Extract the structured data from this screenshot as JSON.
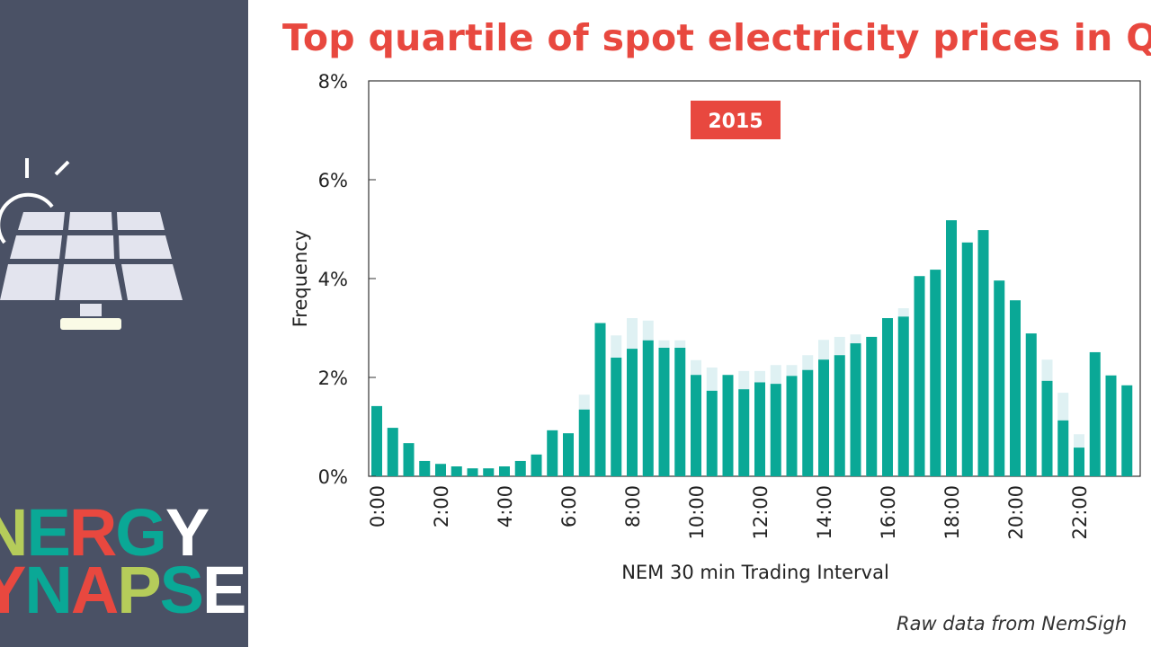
{
  "slide": {
    "title": "Top quartile of spot electricity prices in QL",
    "source": "Raw data from NemSigh",
    "logo_line1": "NERGY",
    "logo_line2": "YNAPSE"
  },
  "colors": {
    "sidebar": "#4a5165",
    "accent": "#e8483f",
    "bar": "#0aa896",
    "bar_ghost": "#dff1f3"
  },
  "chart_data": {
    "type": "bar",
    "title": "Top quartile of spot electricity prices in QL",
    "annotation": "2015",
    "xlabel": "NEM 30 min Trading Interval",
    "ylabel": "Frequency",
    "ylim": [
      0,
      8
    ],
    "yticks": [
      "0%",
      "2%",
      "4%",
      "6%",
      "8%"
    ],
    "xtick_labels": [
      "0:00",
      "2:00",
      "4:00",
      "6:00",
      "8:00",
      "10:00",
      "12:00",
      "14:00",
      "16:00",
      "18:00",
      "20:00",
      "22:00"
    ],
    "categories": [
      "0:00",
      "0:30",
      "1:00",
      "1:30",
      "2:00",
      "2:30",
      "3:00",
      "3:30",
      "4:00",
      "4:30",
      "5:00",
      "5:30",
      "6:00",
      "6:30",
      "7:00",
      "7:30",
      "8:00",
      "8:30",
      "9:00",
      "9:30",
      "10:00",
      "10:30",
      "11:00",
      "11:30",
      "12:00",
      "12:30",
      "13:00",
      "13:30",
      "14:00",
      "14:30",
      "15:00",
      "15:30",
      "16:00",
      "16:30",
      "17:00",
      "17:30",
      "18:00",
      "18:30",
      "19:00",
      "19:30",
      "20:00",
      "20:30",
      "21:00",
      "21:30",
      "22:00",
      "22:30",
      "23:00",
      "23:30"
    ],
    "series": [
      {
        "values": [
          1.42,
          0.98,
          0.67,
          0.31,
          0.25,
          0.2,
          0.16,
          0.16,
          0.2,
          0.31,
          0.44,
          0.93,
          0.87,
          1.35,
          3.1,
          2.4,
          2.58,
          2.75,
          2.6,
          2.6,
          2.05,
          1.73,
          2.05,
          1.76,
          1.9,
          1.87,
          2.03,
          2.15,
          2.36,
          2.45,
          2.69,
          2.82,
          3.2,
          3.23,
          4.05,
          4.18,
          5.18,
          4.73,
          4.98,
          3.96,
          3.56,
          2.89,
          1.93,
          1.13,
          0.58,
          2.51,
          2.04,
          1.84
        ]
      },
      {
        "values": [
          1.42,
          0.98,
          0.67,
          0.31,
          0.25,
          0.2,
          0.16,
          0.16,
          0.2,
          0.31,
          0.44,
          0.93,
          0.87,
          1.65,
          3.1,
          2.85,
          3.2,
          3.15,
          2.75,
          2.75,
          2.35,
          2.2,
          2.05,
          2.13,
          2.13,
          2.25,
          2.25,
          2.45,
          2.76,
          2.82,
          2.87,
          2.82,
          3.2,
          3.4,
          4.05,
          4.18,
          5.18,
          4.73,
          4.98,
          3.96,
          3.56,
          2.89,
          2.36,
          1.69,
          0.85,
          2.51,
          2.04,
          1.84
        ]
      }
    ],
    "grid": false
  }
}
